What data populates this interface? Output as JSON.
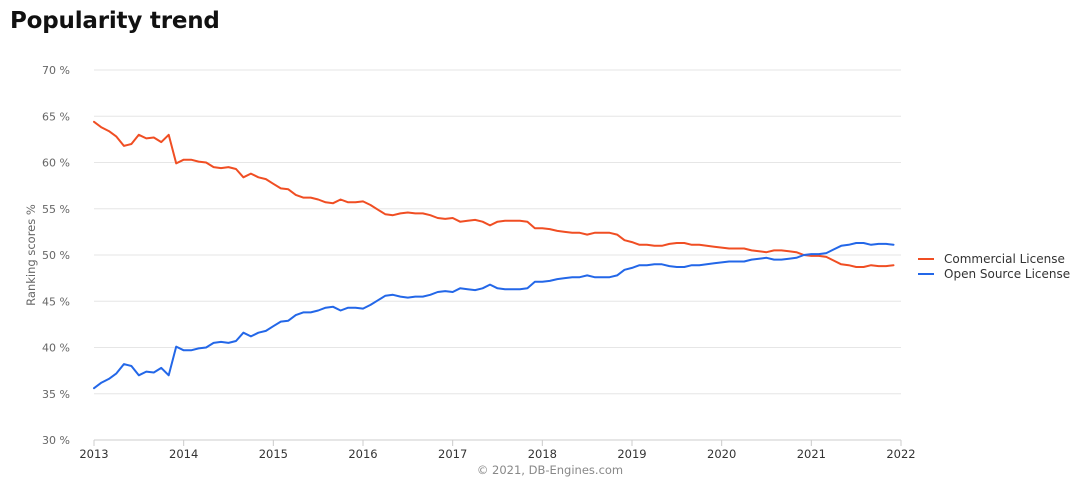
{
  "page": {
    "title": "Popularity trend"
  },
  "colors": {
    "commercial": "#f04e23",
    "open_source": "#2367e8",
    "grid": "#e6e6e6",
    "axis_line": "#cccccc"
  },
  "chart_data": {
    "type": "line",
    "title": "Popularity trend",
    "ylabel": "Ranking scores %",
    "xlabel": "",
    "credit": "© 2021, DB-Engines.com",
    "xlim": [
      2013,
      2022
    ],
    "ylim": [
      30,
      70
    ],
    "x_ticks": [
      "2013",
      "2014",
      "2015",
      "2016",
      "2017",
      "2018",
      "2019",
      "2020",
      "2021",
      "2022"
    ],
    "y_ticks": [
      "30 %",
      "35 %",
      "40 %",
      "45 %",
      "50 %",
      "55 %",
      "60 %",
      "65 %",
      "70 %"
    ],
    "grid": true,
    "legend_position": "right",
    "x_start": "2013-01",
    "x_interval": "monthly",
    "series": [
      {
        "name": "Commercial License",
        "color": "#f04e23",
        "values": [
          64.4,
          63.8,
          63.4,
          62.8,
          61.8,
          62.0,
          63.0,
          62.6,
          62.7,
          62.2,
          63.0,
          59.9,
          60.3,
          60.3,
          60.1,
          60.0,
          59.5,
          59.4,
          59.5,
          59.3,
          58.4,
          58.8,
          58.4,
          58.2,
          57.7,
          57.2,
          57.1,
          56.5,
          56.2,
          56.2,
          56.0,
          55.7,
          55.6,
          56.0,
          55.7,
          55.7,
          55.8,
          55.4,
          54.9,
          54.4,
          54.3,
          54.5,
          54.6,
          54.5,
          54.5,
          54.3,
          54.0,
          53.9,
          54.0,
          53.6,
          53.7,
          53.8,
          53.6,
          53.2,
          53.6,
          53.7,
          53.7,
          53.7,
          53.6,
          52.9,
          52.9,
          52.8,
          52.6,
          52.5,
          52.4,
          52.4,
          52.2,
          52.4,
          52.4,
          52.4,
          52.2,
          51.6,
          51.4,
          51.1,
          51.1,
          51.0,
          51.0,
          51.2,
          51.3,
          51.3,
          51.1,
          51.1,
          51.0,
          50.9,
          50.8,
          50.7,
          50.7,
          50.7,
          50.5,
          50.4,
          50.3,
          50.5,
          50.5,
          50.4,
          50.3,
          50.0,
          49.9,
          49.9,
          49.8,
          49.4,
          49.0,
          48.9,
          48.7,
          48.7,
          48.9,
          48.8,
          48.8,
          48.9
        ]
      },
      {
        "name": "Open Source License",
        "color": "#2367e8",
        "values": [
          35.6,
          36.2,
          36.6,
          37.2,
          38.2,
          38.0,
          37.0,
          37.4,
          37.3,
          37.8,
          37.0,
          40.1,
          39.7,
          39.7,
          39.9,
          40.0,
          40.5,
          40.6,
          40.5,
          40.7,
          41.6,
          41.2,
          41.6,
          41.8,
          42.3,
          42.8,
          42.9,
          43.5,
          43.8,
          43.8,
          44.0,
          44.3,
          44.4,
          44.0,
          44.3,
          44.3,
          44.2,
          44.6,
          45.1,
          45.6,
          45.7,
          45.5,
          45.4,
          45.5,
          45.5,
          45.7,
          46.0,
          46.1,
          46.0,
          46.4,
          46.3,
          46.2,
          46.4,
          46.8,
          46.4,
          46.3,
          46.3,
          46.3,
          46.4,
          47.1,
          47.1,
          47.2,
          47.4,
          47.5,
          47.6,
          47.6,
          47.8,
          47.6,
          47.6,
          47.6,
          47.8,
          48.4,
          48.6,
          48.9,
          48.9,
          49.0,
          49.0,
          48.8,
          48.7,
          48.7,
          48.9,
          48.9,
          49.0,
          49.1,
          49.2,
          49.3,
          49.3,
          49.3,
          49.5,
          49.6,
          49.7,
          49.5,
          49.5,
          49.6,
          49.7,
          50.0,
          50.1,
          50.1,
          50.2,
          50.6,
          51.0,
          51.1,
          51.3,
          51.3,
          51.1,
          51.2,
          51.2,
          51.1
        ]
      }
    ]
  }
}
